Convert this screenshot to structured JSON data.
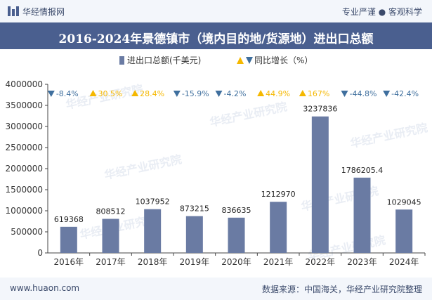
{
  "header": {
    "brand": "华经情报网",
    "tagline": "专业严谨 ● 客观科学"
  },
  "footer": {
    "website": "www.huaon.com",
    "source": "数据来源：中国海关，华经产业研究院整理"
  },
  "watermark": "华经产业研究院",
  "colors": {
    "bar": "#6a7ba3",
    "up": "#f5b800",
    "down": "#3f6f9e",
    "title_bg": "#4a5f8f"
  },
  "chart_data": {
    "type": "bar",
    "title": "2016-2024年景德镇市（境内目的地/货源地）进出口总额",
    "legend": {
      "bar_label": "进出口总额(千美元)",
      "growth_label": "同比增长（%）",
      "placement": "top-center"
    },
    "categories": [
      "2016年",
      "2017年",
      "2018年",
      "2019年",
      "2020年",
      "2021年",
      "2022年",
      "2023年",
      "2024年"
    ],
    "values": [
      619368,
      808512,
      1037952,
      873215,
      836635,
      1212970,
      3237836,
      1786205.4,
      1029045
    ],
    "value_labels": [
      "619368",
      "808512",
      "1037952",
      "873215",
      "836635",
      "1212970",
      "3237836",
      "1786205.4",
      "1029045"
    ],
    "growth": [
      {
        "label": "-8.4%",
        "direction": "down"
      },
      {
        "label": "30.5%",
        "direction": "up"
      },
      {
        "label": "28.4%",
        "direction": "up"
      },
      {
        "label": "-15.9%",
        "direction": "down"
      },
      {
        "label": "-4.2%",
        "direction": "down"
      },
      {
        "label": "44.9%",
        "direction": "up"
      },
      {
        "label": "167%",
        "direction": "up"
      },
      {
        "label": "-44.8%",
        "direction": "down"
      },
      {
        "label": "-42.4%",
        "direction": "down"
      }
    ],
    "ylim": [
      0,
      4000000
    ],
    "yticks": [
      "0",
      "500000",
      "1000000",
      "1500000",
      "2000000",
      "2500000",
      "3000000",
      "3500000",
      "4000000"
    ]
  }
}
